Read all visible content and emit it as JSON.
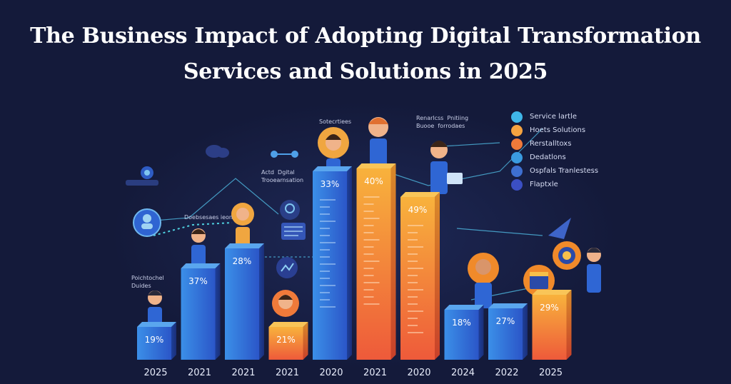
{
  "title": {
    "line1": "The Business Impact of Adopting Digital Transformation",
    "line2": "Services and Solutions in 2025"
  },
  "legend": [
    {
      "label": "Service  lartle",
      "color": "#3fb6e8"
    },
    {
      "label": "Hoets  Solutions",
      "color": "#f5a340"
    },
    {
      "label": "Rerstalltoxs",
      "color": "#f07a3a"
    },
    {
      "label": "Dedatlons",
      "color": "#3a9be0"
    },
    {
      "label": "Ospfals  Tranlestess",
      "color": "#3e6fd0"
    },
    {
      "label": "Flaptxle",
      "color": "#3b4fc4"
    }
  ],
  "annotations": {
    "a1": "Sotecrtiees",
    "a2": "Renarlcss  Pnitiing\nBuooe  forrodaes",
    "a3": "Actd  Dgital\nTrooearnsation",
    "a4": "Doebsesaes  ieon",
    "a5": "Poichtochel\nDuides"
  },
  "chart_data": {
    "type": "bar",
    "categories": [
      "2025",
      "2021",
      "2021",
      "2021",
      "2020",
      "2021",
      "2020",
      "2024",
      "2022",
      "2025"
    ],
    "values": [
      19,
      37,
      28,
      21,
      33,
      40,
      49,
      18,
      27,
      29
    ],
    "value_labels": [
      "19%",
      "37%",
      "28%",
      "21%",
      "33%",
      "40%",
      "49%",
      "18%",
      "27%",
      "29%"
    ],
    "colors": [
      "blue",
      "blue",
      "blue",
      "orange",
      "blue",
      "orange",
      "orange",
      "blue",
      "blue",
      "orange"
    ],
    "title": "The Business Impact of Adopting Digital Transformation Services and Solutions in 2025",
    "xlabel": "",
    "ylabel": "",
    "grid": false,
    "legend_position": "top-right"
  }
}
